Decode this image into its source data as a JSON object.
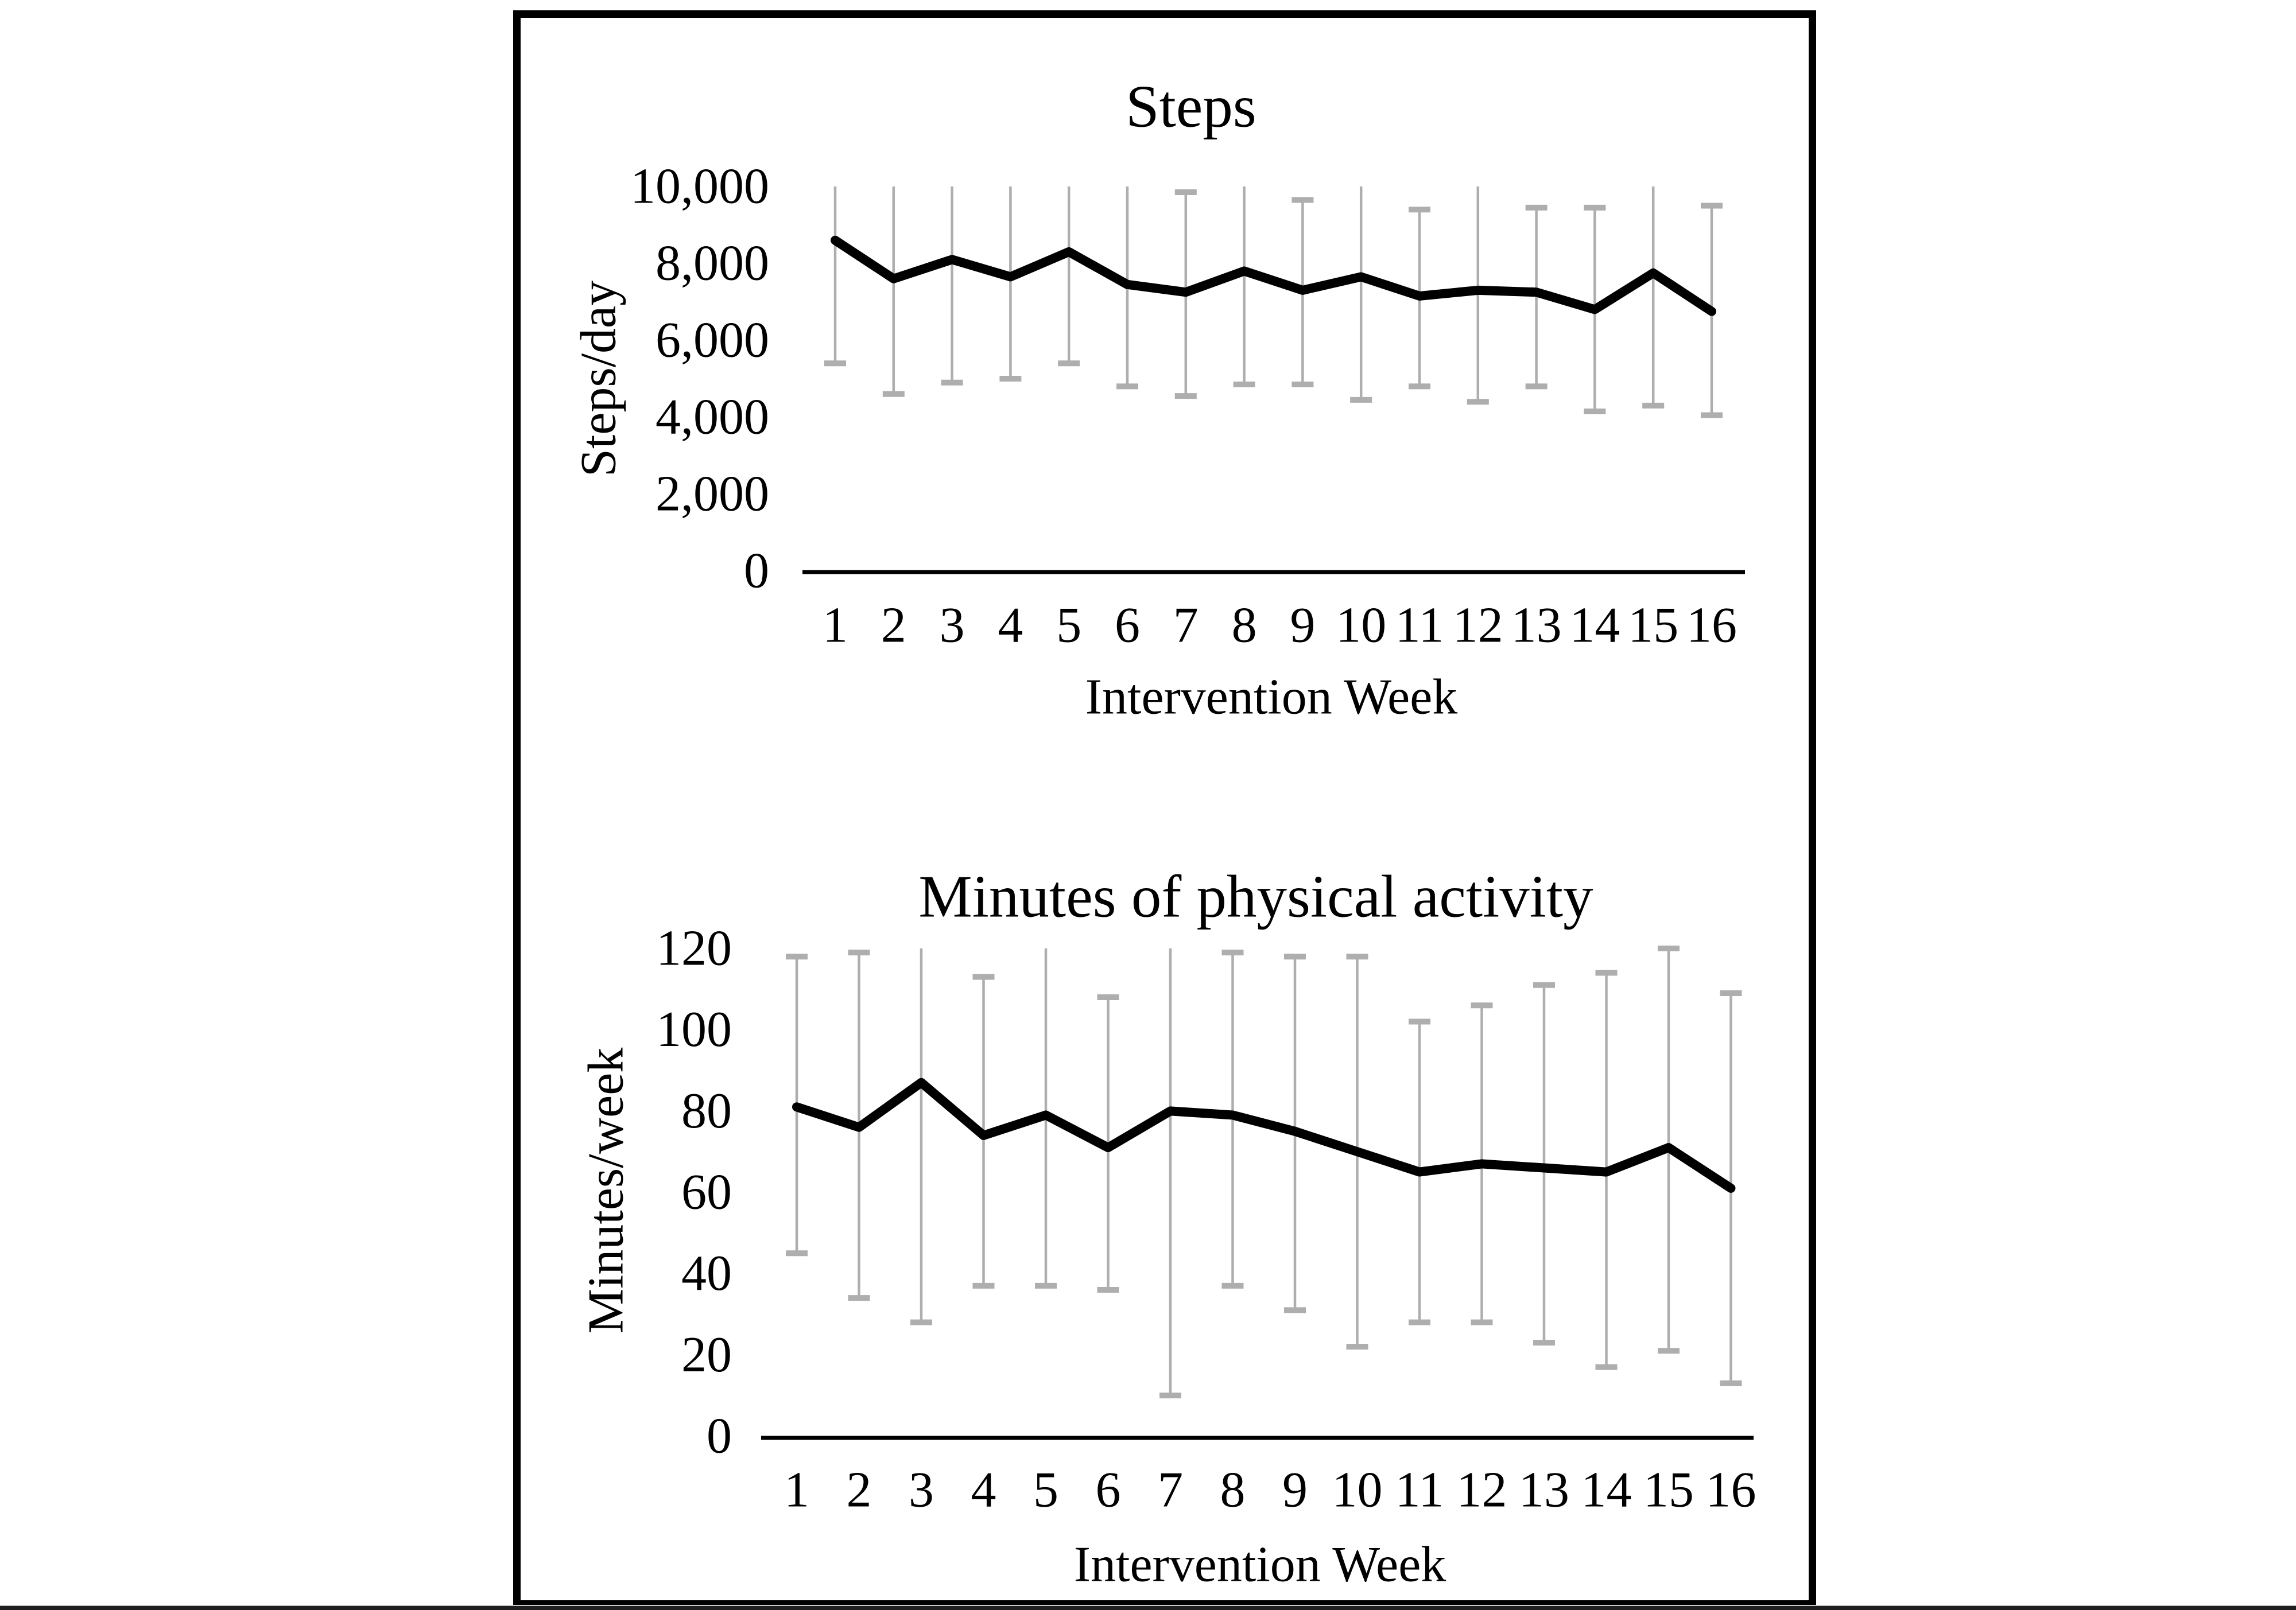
{
  "figure": {
    "background_color": "#ffffff",
    "frame_border_color": "#000000",
    "bottom_rule_color": "#1f1f1f",
    "line_color": "#000000",
    "error_bar_color": "#aeaeae"
  },
  "chart_data": [
    {
      "type": "line",
      "title": "Steps",
      "ylabel": "Steps/day",
      "xlabel": "Intervention Week",
      "legend_position": "none",
      "grid": false,
      "categories": [
        "1",
        "2",
        "3",
        "4",
        "5",
        "6",
        "7",
        "8",
        "9",
        "10",
        "11",
        "12",
        "13",
        "14",
        "15",
        "16"
      ],
      "values": [
        8600,
        7600,
        8100,
        7650,
        8300,
        7450,
        7250,
        7800,
        7300,
        7650,
        7150,
        7300,
        7250,
        6800,
        7750,
        6750
      ],
      "error_upper": [
        10000,
        10000,
        10000,
        10000,
        10000,
        10000,
        9850,
        10000,
        9650,
        10000,
        9400,
        10000,
        9450,
        9450,
        10000,
        9500
      ],
      "upper_cap_visible": [
        false,
        false,
        false,
        false,
        false,
        false,
        true,
        false,
        true,
        false,
        true,
        false,
        true,
        true,
        false,
        true
      ],
      "error_lower": [
        5400,
        4600,
        4900,
        5000,
        5400,
        4800,
        4550,
        4850,
        4850,
        4450,
        4800,
        4400,
        4800,
        4150,
        4300,
        4050
      ],
      "ylim": [
        0,
        10000
      ],
      "yticks": [
        {
          "value": 0,
          "label": "0"
        },
        {
          "value": 2000,
          "label": "2,000"
        },
        {
          "value": 4000,
          "label": "4,000"
        },
        {
          "value": 6000,
          "label": "6,000"
        },
        {
          "value": 8000,
          "label": "8,000"
        },
        {
          "value": 10000,
          "label": "10,000"
        }
      ]
    },
    {
      "type": "line",
      "title": "Minutes of physical activity",
      "ylabel": "Minutes/week",
      "xlabel": "Intervention Week",
      "legend_position": "none",
      "grid": false,
      "categories": [
        "1",
        "2",
        "3",
        "4",
        "5",
        "6",
        "7",
        "8",
        "9",
        "10",
        "11",
        "12",
        "13",
        "14",
        "15",
        "16"
      ],
      "values": [
        81,
        76,
        87,
        74,
        79,
        71,
        80,
        79,
        75,
        70,
        65,
        67,
        66,
        65,
        71,
        61
      ],
      "error_upper": [
        118,
        119,
        120,
        113,
        120,
        108,
        120,
        119,
        118,
        118,
        102,
        106,
        111,
        114,
        120,
        109
      ],
      "upper_cap_visible": [
        true,
        true,
        false,
        true,
        false,
        true,
        false,
        true,
        true,
        true,
        true,
        true,
        true,
        true,
        true,
        true
      ],
      "error_lower": [
        45,
        34,
        28,
        37,
        37,
        36,
        10,
        37,
        31,
        22,
        28,
        28,
        23,
        17,
        21,
        13
      ],
      "ylim": [
        0,
        120
      ],
      "yticks": [
        {
          "value": 0,
          "label": "0"
        },
        {
          "value": 20,
          "label": "20"
        },
        {
          "value": 40,
          "label": "40"
        },
        {
          "value": 60,
          "label": "60"
        },
        {
          "value": 80,
          "label": "80"
        },
        {
          "value": 100,
          "label": "100"
        },
        {
          "value": 120,
          "label": "120"
        }
      ]
    }
  ]
}
